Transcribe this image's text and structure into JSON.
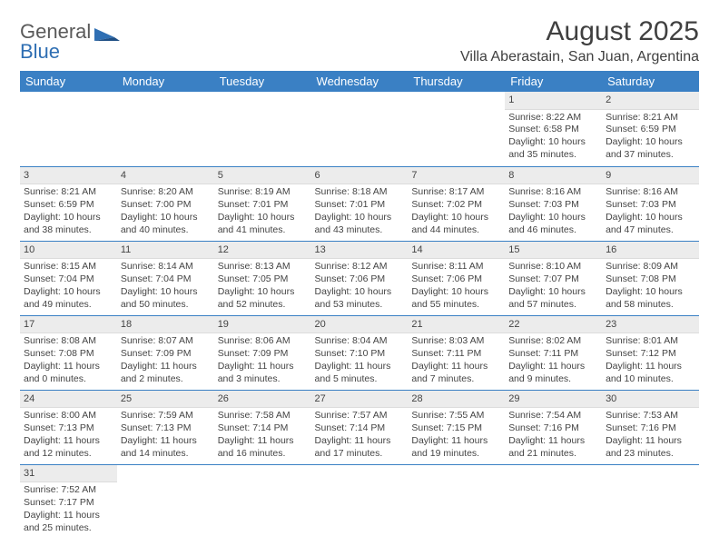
{
  "logo": {
    "text1": "General",
    "text2": "Blue"
  },
  "title": "August 2025",
  "location": "Villa Aberastain, San Juan, Argentina",
  "colors": {
    "header_bg": "#3a80c4",
    "header_text": "#ffffff",
    "daynum_bg": "#ececec",
    "border": "#3a80c4",
    "text": "#444444"
  },
  "dayNames": [
    "Sunday",
    "Monday",
    "Tuesday",
    "Wednesday",
    "Thursday",
    "Friday",
    "Saturday"
  ],
  "weeks": [
    [
      null,
      null,
      null,
      null,
      null,
      {
        "n": "1",
        "sr": "8:22 AM",
        "ss": "6:58 PM",
        "dl": "10 hours and 35 minutes."
      },
      {
        "n": "2",
        "sr": "8:21 AM",
        "ss": "6:59 PM",
        "dl": "10 hours and 37 minutes."
      }
    ],
    [
      {
        "n": "3",
        "sr": "8:21 AM",
        "ss": "6:59 PM",
        "dl": "10 hours and 38 minutes."
      },
      {
        "n": "4",
        "sr": "8:20 AM",
        "ss": "7:00 PM",
        "dl": "10 hours and 40 minutes."
      },
      {
        "n": "5",
        "sr": "8:19 AM",
        "ss": "7:01 PM",
        "dl": "10 hours and 41 minutes."
      },
      {
        "n": "6",
        "sr": "8:18 AM",
        "ss": "7:01 PM",
        "dl": "10 hours and 43 minutes."
      },
      {
        "n": "7",
        "sr": "8:17 AM",
        "ss": "7:02 PM",
        "dl": "10 hours and 44 minutes."
      },
      {
        "n": "8",
        "sr": "8:16 AM",
        "ss": "7:03 PM",
        "dl": "10 hours and 46 minutes."
      },
      {
        "n": "9",
        "sr": "8:16 AM",
        "ss": "7:03 PM",
        "dl": "10 hours and 47 minutes."
      }
    ],
    [
      {
        "n": "10",
        "sr": "8:15 AM",
        "ss": "7:04 PM",
        "dl": "10 hours and 49 minutes."
      },
      {
        "n": "11",
        "sr": "8:14 AM",
        "ss": "7:04 PM",
        "dl": "10 hours and 50 minutes."
      },
      {
        "n": "12",
        "sr": "8:13 AM",
        "ss": "7:05 PM",
        "dl": "10 hours and 52 minutes."
      },
      {
        "n": "13",
        "sr": "8:12 AM",
        "ss": "7:06 PM",
        "dl": "10 hours and 53 minutes."
      },
      {
        "n": "14",
        "sr": "8:11 AM",
        "ss": "7:06 PM",
        "dl": "10 hours and 55 minutes."
      },
      {
        "n": "15",
        "sr": "8:10 AM",
        "ss": "7:07 PM",
        "dl": "10 hours and 57 minutes."
      },
      {
        "n": "16",
        "sr": "8:09 AM",
        "ss": "7:08 PM",
        "dl": "10 hours and 58 minutes."
      }
    ],
    [
      {
        "n": "17",
        "sr": "8:08 AM",
        "ss": "7:08 PM",
        "dl": "11 hours and 0 minutes."
      },
      {
        "n": "18",
        "sr": "8:07 AM",
        "ss": "7:09 PM",
        "dl": "11 hours and 2 minutes."
      },
      {
        "n": "19",
        "sr": "8:06 AM",
        "ss": "7:09 PM",
        "dl": "11 hours and 3 minutes."
      },
      {
        "n": "20",
        "sr": "8:04 AM",
        "ss": "7:10 PM",
        "dl": "11 hours and 5 minutes."
      },
      {
        "n": "21",
        "sr": "8:03 AM",
        "ss": "7:11 PM",
        "dl": "11 hours and 7 minutes."
      },
      {
        "n": "22",
        "sr": "8:02 AM",
        "ss": "7:11 PM",
        "dl": "11 hours and 9 minutes."
      },
      {
        "n": "23",
        "sr": "8:01 AM",
        "ss": "7:12 PM",
        "dl": "11 hours and 10 minutes."
      }
    ],
    [
      {
        "n": "24",
        "sr": "8:00 AM",
        "ss": "7:13 PM",
        "dl": "11 hours and 12 minutes."
      },
      {
        "n": "25",
        "sr": "7:59 AM",
        "ss": "7:13 PM",
        "dl": "11 hours and 14 minutes."
      },
      {
        "n": "26",
        "sr": "7:58 AM",
        "ss": "7:14 PM",
        "dl": "11 hours and 16 minutes."
      },
      {
        "n": "27",
        "sr": "7:57 AM",
        "ss": "7:14 PM",
        "dl": "11 hours and 17 minutes."
      },
      {
        "n": "28",
        "sr": "7:55 AM",
        "ss": "7:15 PM",
        "dl": "11 hours and 19 minutes."
      },
      {
        "n": "29",
        "sr": "7:54 AM",
        "ss": "7:16 PM",
        "dl": "11 hours and 21 minutes."
      },
      {
        "n": "30",
        "sr": "7:53 AM",
        "ss": "7:16 PM",
        "dl": "11 hours and 23 minutes."
      }
    ],
    [
      {
        "n": "31",
        "sr": "7:52 AM",
        "ss": "7:17 PM",
        "dl": "11 hours and 25 minutes."
      },
      null,
      null,
      null,
      null,
      null,
      null
    ]
  ],
  "labels": {
    "sunrise": "Sunrise: ",
    "sunset": "Sunset: ",
    "daylight": "Daylight: "
  }
}
